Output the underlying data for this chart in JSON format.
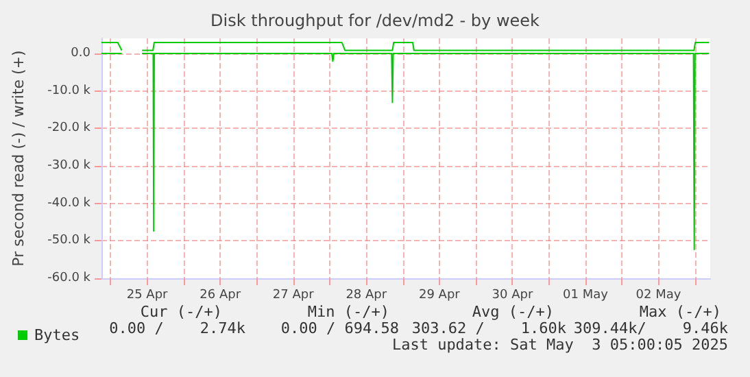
{
  "chart_data": {
    "type": "line",
    "title": "Disk throughput for /dev/md2 - by week",
    "ylabel": "Pr second read (-) / write (+)",
    "xlim": [
      "2025-04-24T21:00",
      "2025-05-03T05:00"
    ],
    "xticks": [
      {
        "value": "2025-04-25T00:00",
        "label": null
      },
      {
        "value": "2025-04-25T12:00",
        "label": "25 Apr"
      },
      {
        "value": "2025-04-26T00:00",
        "label": null
      },
      {
        "value": "2025-04-26T12:00",
        "label": "26 Apr"
      },
      {
        "value": "2025-04-27T00:00",
        "label": null
      },
      {
        "value": "2025-04-27T12:00",
        "label": "27 Apr"
      },
      {
        "value": "2025-04-28T00:00",
        "label": null
      },
      {
        "value": "2025-04-28T12:00",
        "label": "28 Apr"
      },
      {
        "value": "2025-04-29T00:00",
        "label": null
      },
      {
        "value": "2025-04-29T12:00",
        "label": "29 Apr"
      },
      {
        "value": "2025-04-30T00:00",
        "label": null
      },
      {
        "value": "2025-04-30T12:00",
        "label": "30 Apr"
      },
      {
        "value": "2025-05-01T00:00",
        "label": null
      },
      {
        "value": "2025-05-01T12:00",
        "label": "01 May"
      },
      {
        "value": "2025-05-02T00:00",
        "label": null
      },
      {
        "value": "2025-05-02T12:00",
        "label": "02 May"
      },
      {
        "value": "2025-05-03T00:00",
        "label": null
      }
    ],
    "ylim": [
      -60000,
      4000
    ],
    "yticks": [
      {
        "value": -60000,
        "label": "-60.0 k"
      },
      {
        "value": -50000,
        "label": "-50.0 k"
      },
      {
        "value": -40000,
        "label": "-40.0 k"
      },
      {
        "value": -30000,
        "label": "-30.0 k"
      },
      {
        "value": -20000,
        "label": "-20.0 k"
      },
      {
        "value": -10000,
        "label": "-10.0 k"
      },
      {
        "value": 0,
        "label": "0.0"
      }
    ],
    "grid": true,
    "legend": "bottom left",
    "marker": "none",
    "series": [
      {
        "name": "Bytes",
        "color": "#00cc00",
        "x": [
          "2025-04-24T21:00",
          "2025-04-25T02:20",
          "2025-04-25T03:40",
          "2025-04-25T07:00",
          "2025-04-25T10:20",
          "2025-04-25T13:55",
          "2025-04-25T14:20",
          "2025-04-26T08:00",
          "2025-04-26T10:00",
          "2025-04-28T04:00",
          "2025-04-28T05:00",
          "2025-04-28T20:35",
          "2025-04-28T21:00",
          "2025-04-29T03:15",
          "2025-04-29T03:40",
          "2025-05-02T23:40",
          "2025-05-03T00:05",
          "2025-05-03T04:35"
        ],
        "values": [
          2900,
          2900,
          800,
          null,
          800,
          800,
          2900,
          2900,
          2900,
          2900,
          800,
          800,
          2900,
          2900,
          800,
          800,
          2900,
          2900
        ]
      },
      {
        "color": "#00cc00",
        "x": [
          "2025-04-24T21:00",
          "2025-04-25T03:40",
          "2025-04-25T07:00",
          "2025-04-25T10:20",
          "2025-04-25T14:00",
          "2025-04-25T14:10",
          "2025-04-25T14:20",
          "2025-04-28T00:40",
          "2025-04-28T01:00",
          "2025-04-28T01:20",
          "2025-04-28T20:20",
          "2025-04-28T20:35",
          "2025-04-28T20:50",
          "2025-05-02T23:30",
          "2025-05-02T23:45",
          "2025-05-03T00:00",
          "2025-05-03T04:35"
        ],
        "values": [
          0,
          0,
          null,
          0,
          0,
          -47400,
          0,
          0,
          -2100,
          0,
          0,
          -13100,
          0,
          0,
          -52300,
          0,
          0
        ]
      }
    ],
    "annotations": [
      "Cur (-/+)",
      "Min (-/+)",
      "Avg (-/+)",
      "Max (-/+)",
      "0.00 /    2.74k",
      "0.00 / 694.58",
      "303.62 /    1.60k",
      "309.44k/    9.46k",
      "Last update: Sat May  3 05:00:05 2025"
    ]
  }
}
